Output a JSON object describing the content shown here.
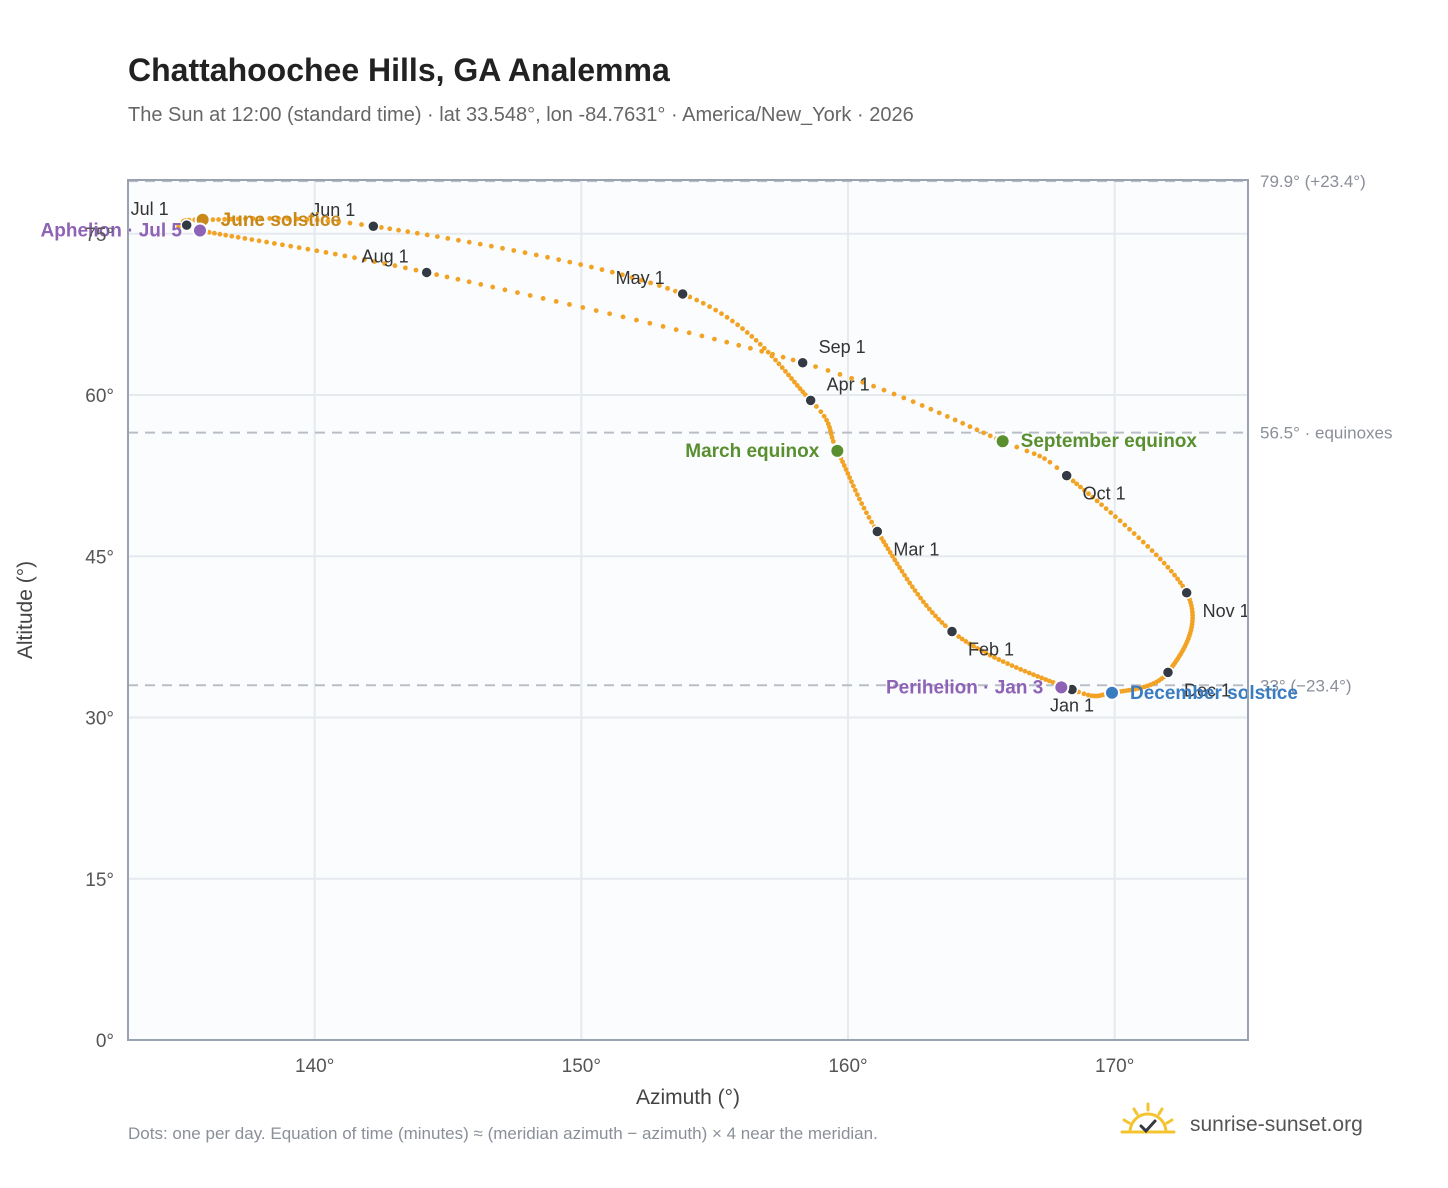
{
  "title": "Chattahoochee Hills, GA Analemma",
  "subtitle": "The Sun at 12:00 (standard time) · lat 33.548°, lon -84.7631° · America/New_York · 2026",
  "footnote": "Dots: one per day. Equation of time (minutes) ≈ (meridian azimuth − azimuth) × 4 near the meridian.",
  "brand": "sunrise-sunset.org",
  "brand_icon": "sun-logo-icon",
  "colors": {
    "curve": "#f2a324",
    "month_dot": "#333a44",
    "june_solstice": "#c8891a",
    "equinox": "#5a8f2f",
    "december_solstice": "#3a7cc0",
    "apsis": "#8e63b5",
    "reference_line": "#b9bec6",
    "plot_bg": "#fafcfe",
    "plot_border": "#98a2b0",
    "grid": "#e6e9ee",
    "brand_sun": "#f4c430"
  },
  "chart_data": {
    "type": "scatter",
    "xlabel": "Azimuth (°)",
    "ylabel": "Altitude (°)",
    "xlim": [
      133,
      175
    ],
    "ylim": [
      0,
      80
    ],
    "x_ticks": [
      140,
      150,
      160,
      170
    ],
    "x_tick_labels": [
      "140°",
      "150°",
      "160°",
      "170°"
    ],
    "y_ticks": [
      0,
      15,
      30,
      45,
      60,
      75
    ],
    "y_tick_labels": [
      "0°",
      "15°",
      "30°",
      "45°",
      "60°",
      "75°"
    ],
    "grid": true,
    "curve": {
      "name": "Analemma (one dot per day)",
      "control_points": [
        {
          "day": 0,
          "azimuth": 168.4,
          "altitude": 32.6
        },
        {
          "day": 31,
          "azimuth": 163.9,
          "altitude": 38.0
        },
        {
          "day": 59,
          "azimuth": 161.1,
          "altitude": 47.3
        },
        {
          "day": 78,
          "azimuth": 159.6,
          "altitude": 54.8
        },
        {
          "day": 90,
          "azimuth": 158.6,
          "altitude": 59.5
        },
        {
          "day": 120,
          "azimuth": 153.8,
          "altitude": 69.4
        },
        {
          "day": 151,
          "azimuth": 142.2,
          "altitude": 75.7
        },
        {
          "day": 171,
          "azimuth": 135.8,
          "altitude": 76.3
        },
        {
          "day": 181,
          "azimuth": 135.2,
          "altitude": 75.8
        },
        {
          "day": 184,
          "azimuth": 135.7,
          "altitude": 75.3
        },
        {
          "day": 212,
          "azimuth": 144.2,
          "altitude": 71.4
        },
        {
          "day": 243,
          "azimuth": 158.3,
          "altitude": 63.0
        },
        {
          "day": 265,
          "azimuth": 165.8,
          "altitude": 55.7
        },
        {
          "day": 273,
          "azimuth": 168.2,
          "altitude": 52.5
        },
        {
          "day": 304,
          "azimuth": 172.7,
          "altitude": 41.6
        },
        {
          "day": 334,
          "azimuth": 172.0,
          "altitude": 34.2
        },
        {
          "day": 354,
          "azimuth": 169.9,
          "altitude": 32.3
        },
        {
          "day": 365,
          "azimuth": 168.4,
          "altitude": 32.6
        }
      ]
    },
    "month_markers": [
      {
        "label": "Jan 1",
        "azimuth": 168.4,
        "altitude": 32.6,
        "anchor": "below"
      },
      {
        "label": "Feb 1",
        "azimuth": 163.9,
        "altitude": 38.0,
        "anchor": "below-right"
      },
      {
        "label": "Mar 1",
        "azimuth": 161.1,
        "altitude": 47.3,
        "anchor": "below-right"
      },
      {
        "label": "Apr 1",
        "azimuth": 158.6,
        "altitude": 59.5,
        "anchor": "above-right"
      },
      {
        "label": "May 1",
        "azimuth": 153.8,
        "altitude": 69.4,
        "anchor": "above-left"
      },
      {
        "label": "Jun 1",
        "azimuth": 142.2,
        "altitude": 75.7,
        "anchor": "above-left"
      },
      {
        "label": "Jul 1",
        "azimuth": 135.2,
        "altitude": 75.8,
        "anchor": "above-left"
      },
      {
        "label": "Aug 1",
        "azimuth": 144.2,
        "altitude": 71.4,
        "anchor": "above-left"
      },
      {
        "label": "Sep 1",
        "azimuth": 158.3,
        "altitude": 63.0,
        "anchor": "above-right"
      },
      {
        "label": "Oct 1",
        "azimuth": 168.2,
        "altitude": 52.5,
        "anchor": "below-right"
      },
      {
        "label": "Nov 1",
        "azimuth": 172.7,
        "altitude": 41.6,
        "anchor": "below-right"
      },
      {
        "label": "Dec 1",
        "azimuth": 172.0,
        "altitude": 34.2,
        "anchor": "below-right"
      }
    ],
    "events": [
      {
        "label": "June solstice",
        "azimuth": 135.8,
        "altitude": 76.3,
        "color": "#c8891a",
        "anchor": "right"
      },
      {
        "label": "Aphelion · Jul 5",
        "azimuth": 135.7,
        "altitude": 75.3,
        "color": "#8e63b5",
        "anchor": "left"
      },
      {
        "label": "March equinox",
        "azimuth": 159.6,
        "altitude": 54.8,
        "color": "#5a8f2f",
        "anchor": "left"
      },
      {
        "label": "September equinox",
        "azimuth": 165.8,
        "altitude": 55.7,
        "color": "#5a8f2f",
        "anchor": "right"
      },
      {
        "label": "December solstice",
        "azimuth": 169.9,
        "altitude": 32.3,
        "color": "#3a7cc0",
        "anchor": "right"
      },
      {
        "label": "Perihelion · Jan 3",
        "azimuth": 168.0,
        "altitude": 32.8,
        "color": "#8e63b5",
        "anchor": "left"
      }
    ],
    "reference_lines": [
      {
        "altitude": 79.9,
        "label": "79.9° (+23.4°)"
      },
      {
        "altitude": 56.5,
        "label": "56.5° · equinoxes"
      },
      {
        "altitude": 33.0,
        "label": "33° (−23.4°)"
      }
    ]
  }
}
